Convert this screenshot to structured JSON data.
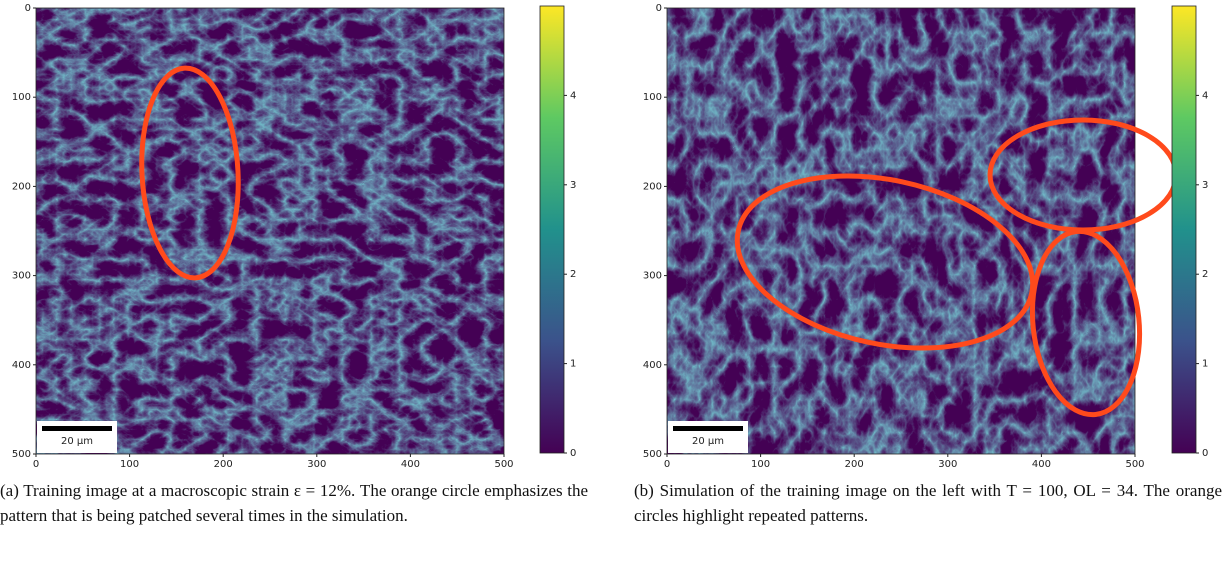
{
  "panels": [
    {
      "type": "heatmap",
      "xlim": [
        0,
        500
      ],
      "ylim": [
        500,
        0
      ],
      "xticks": [
        0,
        100,
        200,
        300,
        400,
        500
      ],
      "yticks": [
        0,
        100,
        200,
        300,
        400,
        500
      ],
      "colorbar": {
        "lim": [
          0,
          5
        ],
        "ticks": [
          0,
          1,
          2,
          3,
          4
        ]
      },
      "scale_bar": "20 µm",
      "caption": "(a) Training image at a macroscopic strain ε = 12%. The orange circle emphasizes the pattern that is being patched several times in the simulation."
    },
    {
      "type": "heatmap",
      "xlim": [
        0,
        500
      ],
      "ylim": [
        500,
        0
      ],
      "xticks": [
        0,
        100,
        200,
        300,
        400,
        500
      ],
      "yticks": [
        0,
        100,
        200,
        300,
        400,
        500
      ],
      "colorbar": {
        "lim": [
          0,
          5
        ],
        "ticks": [
          0,
          1,
          2,
          3,
          4
        ]
      },
      "scale_bar": "20 µm",
      "caption": "(b) Simulation of the training image on the left with T = 100, OL = 34. The orange circles highlight repeated patterns."
    }
  ]
}
